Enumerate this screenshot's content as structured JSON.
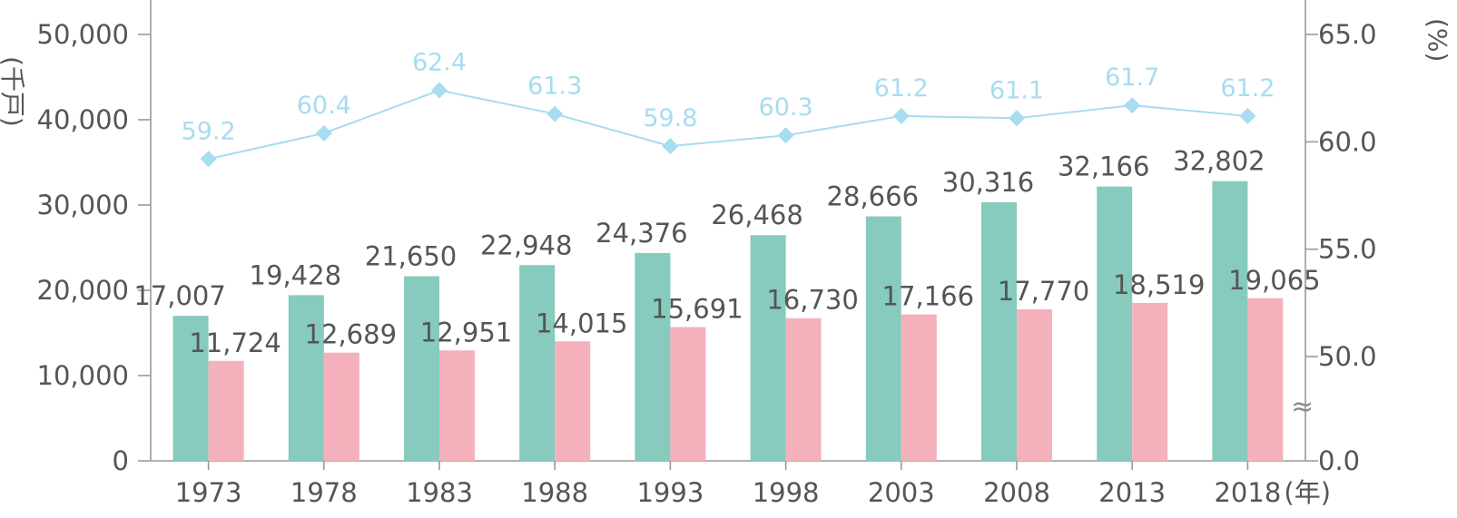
{
  "chart_data": {
    "type": "bar",
    "categories": [
      "1973",
      "1978",
      "1983",
      "1988",
      "1993",
      "1998",
      "2003",
      "2008",
      "2013",
      "2018"
    ],
    "x_unit": "(年)",
    "series": [
      {
        "values": [
          17007,
          19428,
          21650,
          22948,
          24376,
          26468,
          28666,
          30316,
          32166,
          32802
        ],
        "labels": [
          "17,007",
          "19,428",
          "21,650",
          "22,948",
          "24,376",
          "26,468",
          "28,666",
          "30,316",
          "32,166",
          "32,802"
        ],
        "color": "#86cbbd",
        "axis": "left"
      },
      {
        "values": [
          11724,
          12689,
          12951,
          14015,
          15691,
          16730,
          17166,
          17770,
          18519,
          19065
        ],
        "labels": [
          "11,724",
          "12,689",
          "12,951",
          "14,015",
          "15,691",
          "16,730",
          "17,166",
          "17,770",
          "18,519",
          "19,065"
        ],
        "color": "#f5b1bb",
        "axis": "right-less? no: left"
      }
    ],
    "line_series": {
      "type": "line",
      "marker": "diamond",
      "values": [
        59.2,
        60.4,
        62.4,
        61.3,
        59.8,
        60.3,
        61.2,
        61.1,
        61.7,
        61.2
      ],
      "labels": [
        "59.2",
        "60.4",
        "62.4",
        "61.3",
        "59.8",
        "60.3",
        "61.2",
        "61.1",
        "61.7",
        "61.2"
      ],
      "color": "#a7dcf1",
      "axis": "right"
    },
    "left_axis": {
      "unit": "(千戸)",
      "ylim": [
        0,
        50000
      ],
      "ticks": [
        0,
        10000,
        20000,
        30000,
        40000,
        50000
      ],
      "tick_labels": [
        "0",
        "10,000",
        "20,000",
        "30,000",
        "40,000",
        "50,000"
      ]
    },
    "right_axis": {
      "unit": "(%)",
      "broken": true,
      "break_symbol": "≈",
      "ticks": [
        0.0,
        50.0,
        55.0,
        60.0,
        65.0
      ],
      "tick_labels": [
        "0.0",
        "50.0",
        "55.0",
        "60.0",
        "65.0"
      ]
    },
    "grid": false,
    "legend": "none"
  }
}
